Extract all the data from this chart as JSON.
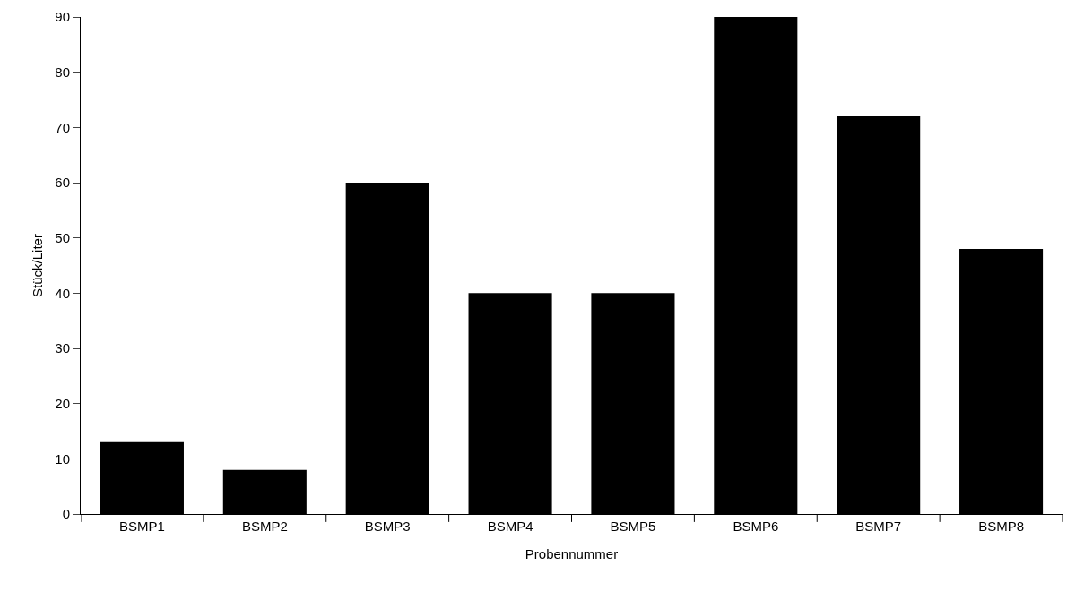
{
  "chart_data": {
    "type": "bar",
    "xlabel": "Probennummer",
    "ylabel": "Stück/Liter",
    "categories": [
      "BSMP1",
      "BSMP2",
      "BSMP3",
      "BSMP4",
      "BSMP5",
      "BSMP6",
      "BSMP7",
      "BSMP8"
    ],
    "values": [
      13,
      8,
      60,
      40,
      40,
      90,
      72,
      48
    ],
    "color": "#000000",
    "ylim": [
      0,
      90
    ],
    "yticks": [
      0,
      10,
      20,
      30,
      40,
      50,
      60,
      70,
      80,
      90
    ],
    "grid": false
  }
}
